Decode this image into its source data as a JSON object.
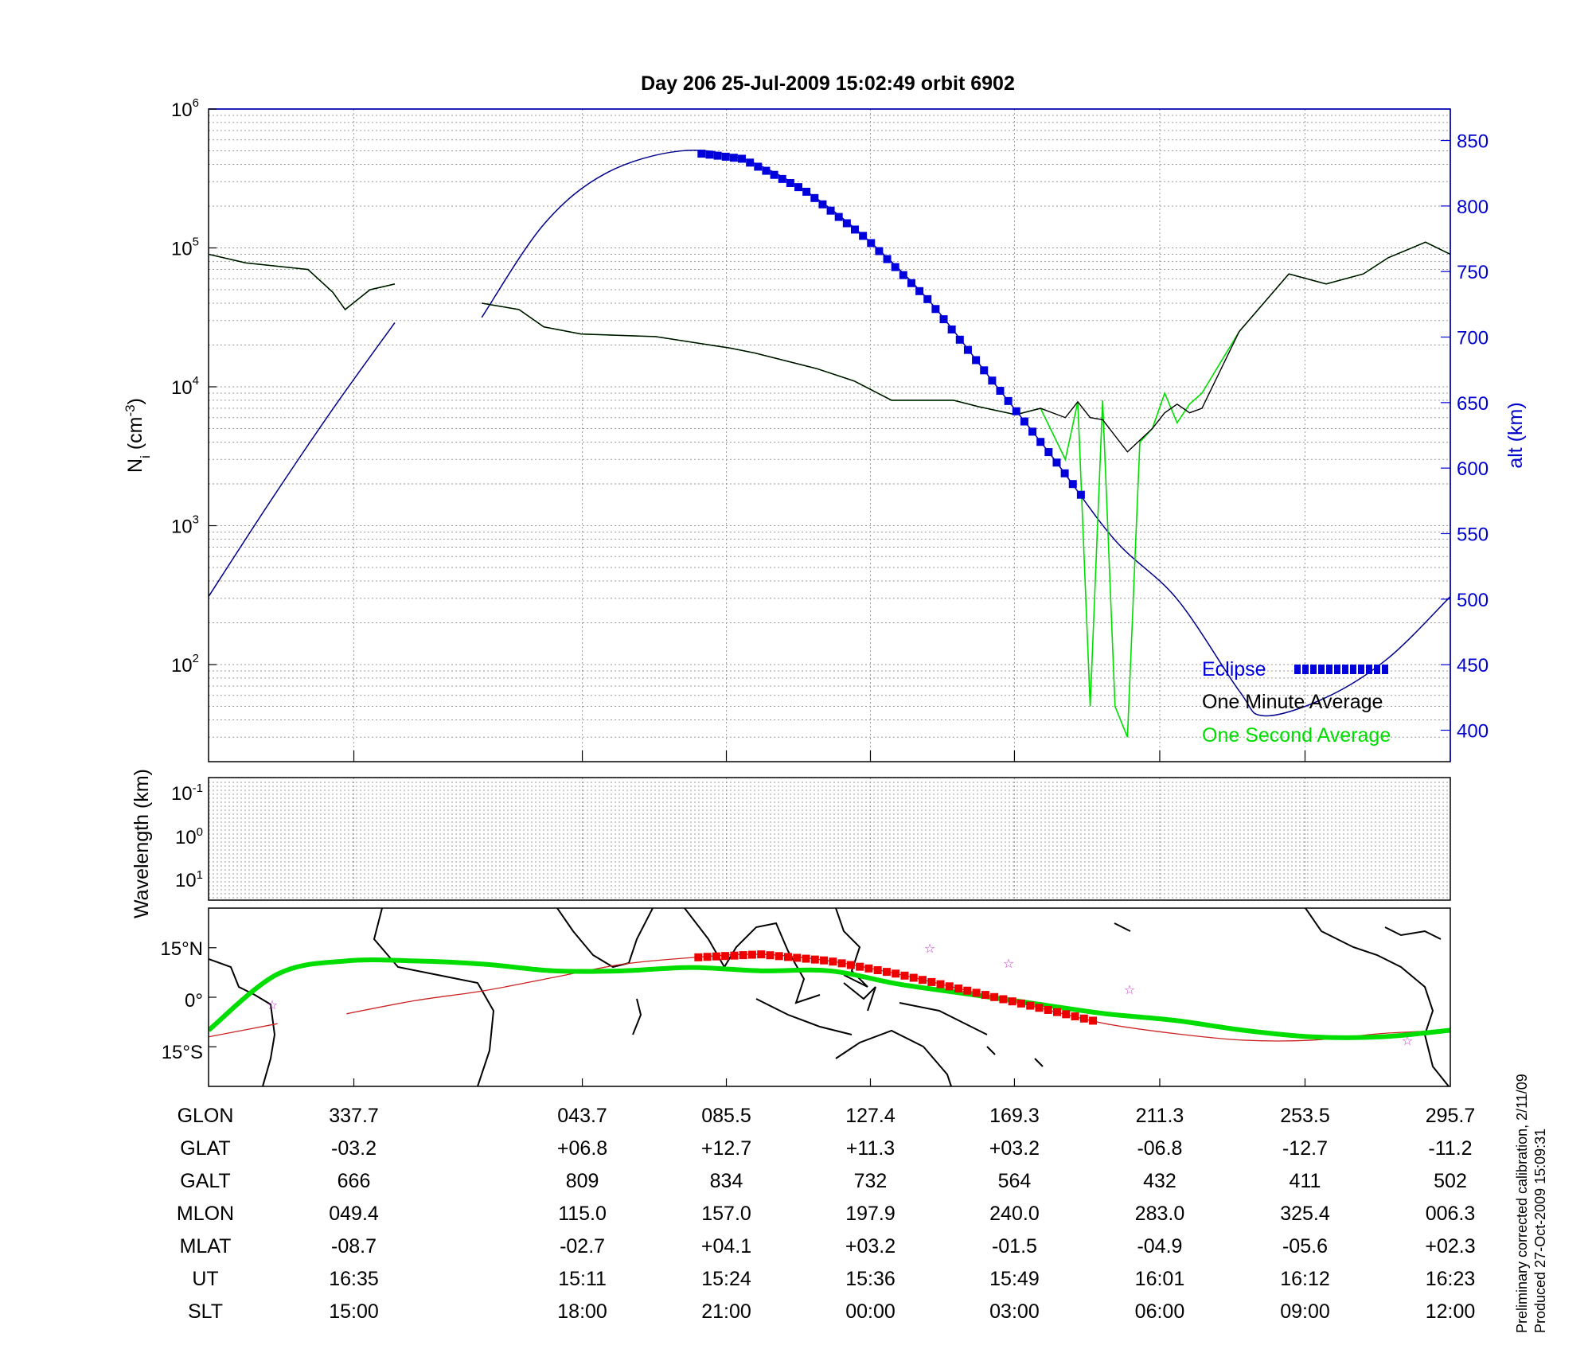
{
  "title": "Day 206  25-Jul-2009 15:02:49   orbit 6902",
  "chart_data": [
    {
      "type": "line",
      "panel": "ion-density",
      "ylabel_main": "N",
      "ylabel_sub": "i",
      "ylabel_unit_a": " (cm",
      "ylabel_unit_sup": "-3",
      "ylabel_unit_b": ")",
      "yscale": "log",
      "ylim": [
        20,
        1000000
      ],
      "yticks": [
        {
          "base": "10",
          "exp": "2",
          "value": 100
        },
        {
          "base": "10",
          "exp": "3",
          "value": 1000
        },
        {
          "base": "10",
          "exp": "4",
          "value": 10000
        },
        {
          "base": "10",
          "exp": "5",
          "value": 100000
        },
        {
          "base": "10",
          "exp": "6",
          "value": 1000000
        }
      ],
      "y2label": "alt (km)",
      "y2lim": [
        376,
        874
      ],
      "y2ticks": [
        "400",
        "450",
        "500",
        "550",
        "600",
        "650",
        "700",
        "750",
        "800",
        "850"
      ],
      "xlim": [
        0,
        1
      ],
      "grid": true,
      "legend_position": "bottom-right",
      "legend": [
        {
          "label": "Eclipse",
          "color": "#0000dd"
        },
        {
          "label": "One Minute Average",
          "color": "#000000"
        },
        {
          "label": "One Second Average",
          "color": "#00dd00"
        }
      ],
      "series": [
        {
          "name": "One Minute Average",
          "color": "#000000",
          "segments": [
            {
              "x": [
                0,
                0.03,
                0.08,
                0.1,
                0.11,
                0.13,
                0.15
              ],
              "y": [
                90000,
                78000,
                70000,
                48000,
                36000,
                50000,
                55000
              ]
            },
            {
              "x": [
                0.22,
                0.25,
                0.27,
                0.3,
                0.36,
                0.42,
                0.44,
                0.49,
                0.52,
                0.55,
                0.6,
                0.62,
                0.65,
                0.67,
                0.69,
                0.7,
                0.71,
                0.72,
                0.74,
                0.76,
                0.77,
                0.78,
                0.79,
                0.8,
                0.83,
                0.87,
                0.9,
                0.93,
                0.95,
                0.98,
                1
              ],
              "y": [
                40000,
                36000,
                27000,
                24000,
                23000,
                19000,
                17500,
                13500,
                11000,
                8000,
                8000,
                7200,
                6300,
                7000,
                6000,
                7800,
                6000,
                5800,
                3400,
                5000,
                6500,
                7500,
                6500,
                7000,
                25000,
                65000,
                55000,
                65000,
                85000,
                110000,
                90000
              ]
            }
          ]
        },
        {
          "name": "One Second Average",
          "color": "#00dd00",
          "segments": [
            {
              "x": [
                0,
                0.03,
                0.08,
                0.1,
                0.11,
                0.13,
                0.15
              ],
              "y": [
                90000,
                78000,
                70000,
                48000,
                36000,
                50000,
                55000
              ]
            },
            {
              "x": [
                0.22,
                0.25,
                0.27,
                0.3,
                0.36,
                0.42,
                0.44,
                0.49,
                0.52,
                0.55,
                0.6,
                0.62,
                0.65,
                0.67,
                0.69,
                0.7,
                0.71,
                0.72,
                0.73,
                0.74,
                0.75,
                0.76,
                0.77,
                0.78,
                0.79,
                0.8,
                0.83,
                0.87,
                0.9,
                0.93,
                0.95,
                0.98,
                1
              ],
              "y": [
                40000,
                36000,
                27000,
                24000,
                23000,
                19000,
                17500,
                13500,
                11000,
                8000,
                8000,
                7200,
                6300,
                7000,
                3000,
                7800,
                50,
                8000,
                50,
                30,
                4000,
                5000,
                9000,
                5500,
                7500,
                9000,
                25000,
                65000,
                55000,
                65000,
                85000,
                110000,
                90000
              ]
            }
          ]
        }
      ],
      "altitude_series": {
        "name": "alt (km)",
        "color": "#00008b",
        "x": [
          0,
          0.05,
          0.1,
          0.15,
          0.22,
          0.27,
          0.32,
          0.38,
          0.43,
          0.48,
          0.53,
          0.58,
          0.63,
          0.68,
          0.73,
          0.78,
          0.83,
          0.85,
          0.9,
          0.95,
          1
        ],
        "y": [
          502,
          575,
          645,
          711,
          715,
          786,
          825,
          842,
          836,
          812,
          775,
          728,
          668,
          608,
          545,
          500,
          430,
          411,
          425,
          455,
          502
        ],
        "gaps_between_x": [
          0.15,
          0.22
        ]
      },
      "eclipse_x_range": [
        0.397,
        0.706
      ]
    },
    {
      "type": "heatmap",
      "panel": "wavelength",
      "ylabel": "Wavelength (km)",
      "yticks": [
        {
          "base": "10",
          "exp": "-1"
        },
        {
          "base": "10",
          "exp": "0"
        },
        {
          "base": "10",
          "exp": "1"
        }
      ],
      "values": []
    },
    {
      "type": "line",
      "panel": "ground-track-map",
      "yticks": [
        "15°N",
        "0°",
        "15°S"
      ],
      "ylim": [
        -27,
        27
      ],
      "xlim": [
        -40,
        320
      ],
      "series": [
        {
          "name": "magnetic equator",
          "color": "#00dd00",
          "x": [
            -40,
            -20,
            0,
            20,
            40,
            60,
            80,
            100,
            120,
            140,
            160,
            180,
            200,
            220,
            240,
            260,
            280,
            300,
            320
          ],
          "y": [
            -10,
            7,
            11,
            11,
            10,
            8,
            8,
            9,
            8,
            8,
            4,
            1,
            -2,
            -5,
            -7,
            -10,
            -12,
            -12,
            -10
          ]
        },
        {
          "name": "satellite track",
          "color": "#cc2222",
          "x": [
            -40,
            -20,
            0,
            20,
            40,
            60,
            80,
            100,
            120,
            140,
            160,
            180,
            200,
            220,
            240,
            260,
            280,
            300,
            320
          ],
          "y": [
            -12,
            -8,
            -5,
            -1,
            2,
            6,
            10,
            12,
            13,
            11,
            7,
            2,
            -3,
            -8,
            -11,
            -13,
            -13,
            -11,
            -10
          ],
          "gaps_between_x": [
            -20,
            0
          ]
        }
      ],
      "eclipse_lon_range": [
        102,
        217
      ]
    }
  ],
  "table": {
    "row_labels": [
      "GLON",
      "GLAT",
      "GALT",
      "MLON",
      "MLAT",
      "UT",
      "SLT"
    ],
    "columns": [
      [
        "337.7",
        "-03.2",
        "666",
        "049.4",
        "-08.7",
        "16:35",
        "15:00"
      ],
      [
        "043.7",
        "+06.8",
        "809",
        "115.0",
        "-02.7",
        "15:11",
        "18:00"
      ],
      [
        "085.5",
        "+12.7",
        "834",
        "157.0",
        "+04.1",
        "15:24",
        "21:00"
      ],
      [
        "127.4",
        "+11.3",
        "732",
        "197.9",
        "+03.2",
        "15:36",
        "00:00"
      ],
      [
        "169.3",
        "+03.2",
        "564",
        "240.0",
        "-01.5",
        "15:49",
        "03:00"
      ],
      [
        "211.3",
        "-06.8",
        "432",
        "283.0",
        "-04.9",
        "16:01",
        "06:00"
      ],
      [
        "253.5",
        "-12.7",
        "411",
        "325.4",
        "-05.6",
        "16:12",
        "09:00"
      ],
      [
        "295.7",
        "-11.2",
        "502",
        "006.3",
        "+02.3",
        "16:23",
        "12:00"
      ]
    ]
  },
  "footer": {
    "line1": "Preliminary corrected calibration, 2/11/09",
    "line2": "Produced 27-Oct-2009 15:09:31"
  }
}
